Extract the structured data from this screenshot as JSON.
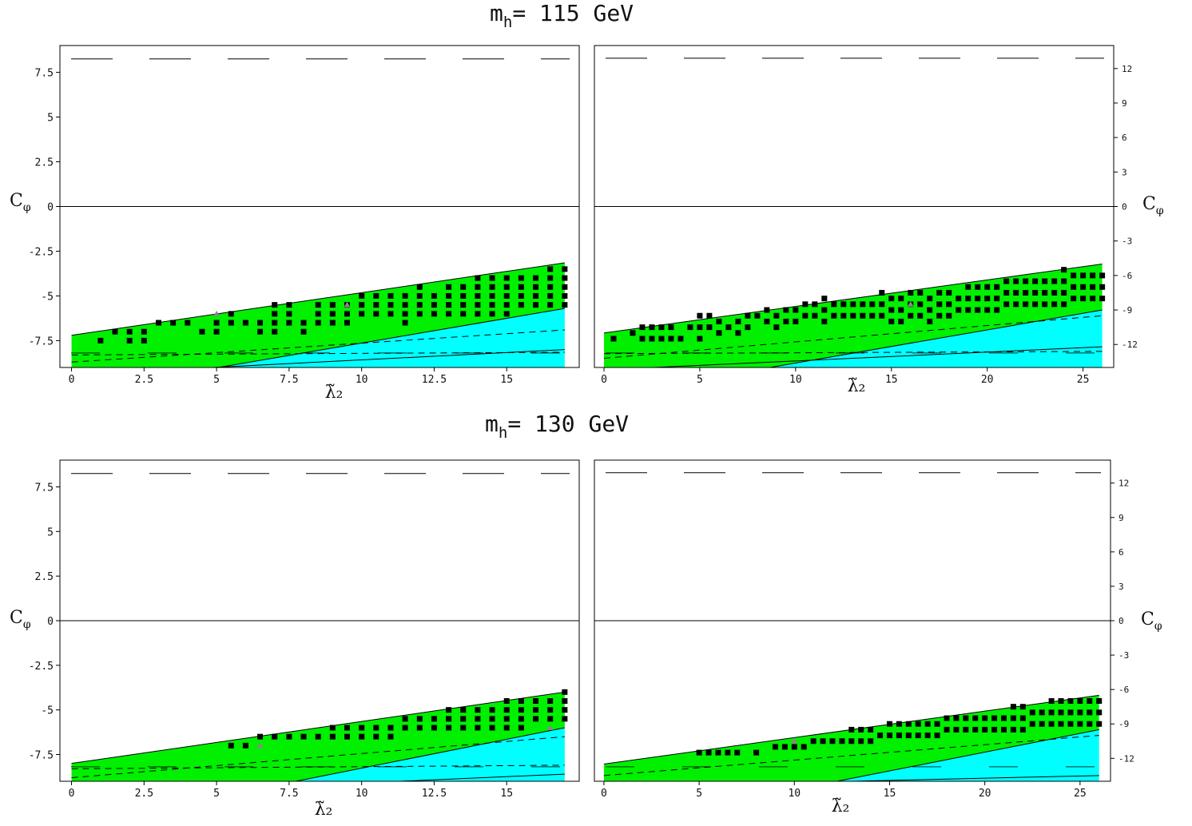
{
  "titles": [
    {
      "prefix": "m",
      "sub": "h",
      "text": "= 115 GeV"
    },
    {
      "prefix": "m",
      "sub": "h",
      "text": "= 130 GeV"
    }
  ],
  "colors": {
    "green": "#00f000",
    "cyan": "#00ffff",
    "marker": "#000000",
    "triangle": "#888888",
    "frame": "#000000"
  },
  "chart_data": [
    {
      "type": "scatter",
      "title": "m_h = 115 GeV",
      "xlabel": "λ̃₂",
      "ylabel": "C_φ",
      "xlim": [
        -0.4,
        17.5
      ],
      "ylim": [
        -9,
        9
      ],
      "xticks": [
        0,
        2.5,
        5,
        7.5,
        10,
        12.5,
        15
      ],
      "xtick_labels": [
        "0",
        "2.5",
        "5",
        "7.5",
        "10",
        "12.5",
        "15"
      ],
      "yticks": [
        7.5,
        5,
        2.5,
        0,
        -2.5,
        -5,
        -7.5
      ],
      "ytick_labels": [
        "7.5",
        "5",
        "2.5",
        "0",
        "-2.5",
        "-5",
        "-7.5"
      ],
      "ytick_side": "left",
      "region_x_max": 17,
      "green_upper": [
        [
          0,
          -7.2
        ],
        [
          17,
          -3.15
        ]
      ],
      "green_lower": [
        [
          0,
          -10.4
        ],
        [
          17,
          -5.7
        ]
      ],
      "dashed_lines": [
        [
          [
            0,
            -8.7
          ],
          [
            17,
            -6.9
          ]
        ],
        [
          [
            0,
            -8.3
          ],
          [
            17,
            -8.15
          ]
        ]
      ],
      "solid_lines": [
        [
          [
            0,
            -9.4
          ],
          [
            17,
            -8.0
          ]
        ]
      ],
      "top_dashed": 8.25,
      "point_columns": [
        [
          1.0,
          -7.5,
          -7.5
        ],
        [
          1.5,
          -7.0,
          -7.0
        ],
        [
          2.0,
          -7.5,
          -7.0
        ],
        [
          2.5,
          -7.5,
          -7.0
        ],
        [
          3.0,
          -6.5,
          -6.5
        ],
        [
          3.5,
          -6.5,
          -6.5
        ],
        [
          4.0,
          -6.5,
          -6.5
        ],
        [
          4.5,
          -7.0,
          -7.0
        ],
        [
          5.0,
          -7.0,
          -6.5
        ],
        [
          5.5,
          -6.5,
          -6.0
        ],
        [
          6.0,
          -6.5,
          -6.5
        ],
        [
          6.5,
          -7.0,
          -6.5
        ],
        [
          7.0,
          -7.0,
          -5.5
        ],
        [
          7.5,
          -6.5,
          -5.5
        ],
        [
          8.0,
          -7.0,
          -6.5
        ],
        [
          8.5,
          -6.5,
          -5.5
        ],
        [
          9.0,
          -6.5,
          -5.5
        ],
        [
          9.5,
          -6.5,
          -5.5
        ],
        [
          10.0,
          -6.0,
          -5.0
        ],
        [
          10.5,
          -6.0,
          -5.0
        ],
        [
          11.0,
          -6.0,
          -5.0
        ],
        [
          11.5,
          -6.5,
          -5.0
        ],
        [
          12.0,
          -6.0,
          -4.5
        ],
        [
          12.5,
          -6.0,
          -5.0
        ],
        [
          13.0,
          -6.0,
          -4.5
        ],
        [
          13.5,
          -6.0,
          -4.5
        ],
        [
          14.0,
          -6.0,
          -4.0
        ],
        [
          14.5,
          -6.0,
          -4.0
        ],
        [
          15.0,
          -6.0,
          -4.0
        ],
        [
          15.5,
          -5.5,
          -4.0
        ],
        [
          16.0,
          -5.5,
          -4.0
        ],
        [
          16.5,
          -5.5,
          -3.5
        ],
        [
          17.0,
          -5.5,
          -3.5
        ]
      ],
      "triangles": [
        [
          5.0,
          -6.0
        ],
        [
          9.5,
          -5.5
        ]
      ]
    },
    {
      "type": "scatter",
      "title": "m_h = 115 GeV",
      "xlabel": "λ̃₂",
      "ylabel": "C_φ",
      "xlim": [
        -0.5,
        26.6
      ],
      "ylim": [
        -14,
        14
      ],
      "xticks": [
        0,
        5,
        10,
        15,
        20,
        25
      ],
      "xtick_labels": [
        "0",
        "5",
        "10",
        "15",
        "20",
        "25"
      ],
      "yticks": [
        12,
        9,
        6,
        3,
        0,
        -3,
        -6,
        -9,
        -12
      ],
      "ytick_labels": [
        "12",
        "9",
        "6",
        "3",
        "0",
        "-3",
        "-6",
        "-9",
        "-12"
      ],
      "ytick_side": "right",
      "region_x_max": 26,
      "green_upper": [
        [
          0,
          -11.0
        ],
        [
          26,
          -5.0
        ]
      ],
      "green_lower": [
        [
          0,
          -16.5
        ],
        [
          26,
          -9.0
        ]
      ],
      "dashed_lines": [
        [
          [
            0,
            -13.2
          ],
          [
            26,
            -9.5
          ]
        ],
        [
          [
            0,
            -12.8
          ],
          [
            26,
            -12.6
          ]
        ]
      ],
      "solid_lines": [
        [
          [
            0,
            -14.2
          ],
          [
            26,
            -12.2
          ]
        ]
      ],
      "top_dashed": 12.9,
      "point_columns": [
        [
          0.5,
          -11.5,
          -11.5
        ],
        [
          1.5,
          -11.0,
          -11.0
        ],
        [
          2.0,
          -11.5,
          -10.5
        ],
        [
          2.5,
          -11.5,
          -10.5
        ],
        [
          3.0,
          -11.5,
          -10.0
        ],
        [
          3.5,
          -11.5,
          -10.5
        ],
        [
          4.0,
          -11.5,
          -11.0
        ],
        [
          4.5,
          -10.5,
          -10.0
        ],
        [
          5.0,
          -11.5,
          -9.5
        ],
        [
          5.5,
          -10.5,
          -9.5
        ],
        [
          6.0,
          -11.0,
          -9.5
        ],
        [
          6.5,
          -10.5,
          -10.0
        ],
        [
          7.0,
          -11.0,
          -9.5
        ],
        [
          7.5,
          -10.5,
          -9.0
        ],
        [
          8.0,
          -9.5,
          -9.5
        ],
        [
          8.5,
          -10.0,
          -9.0
        ],
        [
          9.0,
          -10.5,
          -9.0
        ],
        [
          9.5,
          -10.0,
          -8.5
        ],
        [
          10.0,
          -10.0,
          -8.5
        ],
        [
          10.5,
          -9.5,
          -8.5
        ],
        [
          11.0,
          -9.5,
          -8.5
        ],
        [
          11.5,
          -10.0,
          -8.0
        ],
        [
          12.0,
          -9.5,
          -8.5
        ],
        [
          12.5,
          -9.5,
          -8.0
        ],
        [
          13.0,
          -9.5,
          -8.0
        ],
        [
          13.5,
          -9.5,
          -8.0
        ],
        [
          14.0,
          -9.5,
          -8.0
        ],
        [
          14.5,
          -9.5,
          -7.5
        ],
        [
          15.0,
          -10.0,
          -7.5
        ],
        [
          15.5,
          -10.0,
          -7.5
        ],
        [
          16.0,
          -9.5,
          -7.5
        ],
        [
          16.5,
          -9.5,
          -7.5
        ],
        [
          17.0,
          -10.0,
          -7.5
        ],
        [
          17.5,
          -9.5,
          -7.5
        ],
        [
          18.0,
          -9.5,
          -7.5
        ],
        [
          18.5,
          -9.0,
          -7.5
        ],
        [
          19.0,
          -9.0,
          -7.0
        ],
        [
          19.5,
          -9.0,
          -7.0
        ],
        [
          20.0,
          -9.0,
          -6.5
        ],
        [
          20.5,
          -9.0,
          -6.5
        ],
        [
          21.0,
          -8.5,
          -6.5
        ],
        [
          21.5,
          -8.5,
          -6.5
        ],
        [
          22.0,
          -8.5,
          -6.0
        ],
        [
          22.5,
          -8.5,
          -6.0
        ],
        [
          23.0,
          -8.5,
          -6.0
        ],
        [
          23.5,
          -8.5,
          -6.0
        ],
        [
          24.0,
          -8.5,
          -5.5
        ],
        [
          24.5,
          -8.0,
          -5.5
        ],
        [
          25.0,
          -8.0,
          -5.5
        ],
        [
          25.5,
          -8.0,
          -5.5
        ],
        [
          26.0,
          -8.0,
          -5.5
        ]
      ],
      "triangles": [
        [
          16.0,
          -8.5
        ]
      ]
    },
    {
      "type": "scatter",
      "title": "m_h = 130 GeV",
      "xlabel": "λ̃₂",
      "ylabel": "C_φ",
      "xlim": [
        -0.4,
        17.5
      ],
      "ylim": [
        -9,
        9
      ],
      "xticks": [
        0,
        2.5,
        5,
        7.5,
        10,
        12.5,
        15
      ],
      "xtick_labels": [
        "0",
        "2.5",
        "5",
        "7.5",
        "10",
        "12.5",
        "15"
      ],
      "yticks": [
        7.5,
        5,
        2.5,
        0,
        -2.5,
        -5,
        -7.5
      ],
      "ytick_labels": [
        "7.5",
        "5",
        "2.5",
        "0",
        "-2.5",
        "-5",
        "-7.5"
      ],
      "ytick_side": "left",
      "region_x_max": 17,
      "green_upper": [
        [
          0,
          -8.0
        ],
        [
          17,
          -4.0
        ]
      ],
      "green_lower": [
        [
          0,
          -11.5
        ],
        [
          17,
          -6.0
        ]
      ],
      "dashed_lines": [
        [
          [
            0,
            -8.8
          ],
          [
            17,
            -6.5
          ]
        ],
        [
          [
            0,
            -8.3
          ],
          [
            17,
            -8.1
          ]
        ]
      ],
      "solid_lines": [
        [
          [
            0,
            -9.8
          ],
          [
            17,
            -8.6
          ]
        ]
      ],
      "top_dashed": 8.25,
      "point_columns": [
        [
          5.5,
          -7.0,
          -7.0
        ],
        [
          6.0,
          -7.0,
          -7.0
        ],
        [
          6.5,
          -6.5,
          -6.5
        ],
        [
          7.0,
          -6.5,
          -6.5
        ],
        [
          7.5,
          -6.5,
          -6.5
        ],
        [
          8.0,
          -6.5,
          -6.5
        ],
        [
          8.5,
          -6.5,
          -6.5
        ],
        [
          9.0,
          -6.5,
          -6.0
        ],
        [
          9.5,
          -6.5,
          -6.0
        ],
        [
          10.0,
          -6.5,
          -6.0
        ],
        [
          10.5,
          -6.5,
          -6.0
        ],
        [
          11.0,
          -6.5,
          -6.0
        ],
        [
          11.5,
          -6.0,
          -5.5
        ],
        [
          12.0,
          -6.0,
          -5.5
        ],
        [
          12.5,
          -6.0,
          -5.5
        ],
        [
          13.0,
          -6.0,
          -5.0
        ],
        [
          13.5,
          -6.0,
          -5.0
        ],
        [
          14.0,
          -6.0,
          -5.0
        ],
        [
          14.5,
          -6.0,
          -5.0
        ],
        [
          15.0,
          -6.0,
          -4.5
        ],
        [
          15.5,
          -6.0,
          -4.5
        ],
        [
          16.0,
          -5.5,
          -4.5
        ],
        [
          16.5,
          -5.5,
          -4.5
        ],
        [
          17.0,
          -5.5,
          -4.0
        ]
      ],
      "triangles": [
        [
          6.5,
          -7.0
        ],
        [
          16.5,
          -6.0
        ]
      ]
    },
    {
      "type": "scatter",
      "title": "m_h = 130 GeV",
      "xlabel": "λ̃₂",
      "ylabel": "C_φ",
      "xlim": [
        -0.5,
        26.6
      ],
      "ylim": [
        -14,
        14
      ],
      "xticks": [
        0,
        5,
        10,
        15,
        20,
        25
      ],
      "xtick_labels": [
        "0",
        "5",
        "10",
        "15",
        "20",
        "25"
      ],
      "yticks": [
        12,
        9,
        6,
        3,
        0,
        -3,
        -6,
        -9,
        -12
      ],
      "ytick_labels": [
        "12",
        "9",
        "6",
        "3",
        "0",
        "-3",
        "-6",
        "-9",
        "-12"
      ],
      "ytick_side": "right",
      "region_x_max": 26,
      "green_upper": [
        [
          0,
          -12.5
        ],
        [
          26,
          -6.5
        ]
      ],
      "green_lower": [
        [
          0,
          -18.0
        ],
        [
          26,
          -9.5
        ]
      ],
      "dashed_lines": [
        [
          [
            0,
            -13.5
          ],
          [
            26,
            -10.0
          ]
        ]
      ],
      "solid_lines": [
        [
          [
            0,
            -14.5
          ],
          [
            26,
            -13.5
          ]
        ]
      ],
      "top_dashed": 12.9,
      "point_columns": [
        [
          5.0,
          -11.5,
          -11.5
        ],
        [
          5.5,
          -11.5,
          -11.5
        ],
        [
          6.0,
          -11.5,
          -11.5
        ],
        [
          6.5,
          -11.5,
          -11.0
        ],
        [
          7.0,
          -11.5,
          -11.5
        ],
        [
          8.0,
          -11.5,
          -11.0
        ],
        [
          9.0,
          -11.0,
          -10.5
        ],
        [
          9.5,
          -11.0,
          -10.5
        ],
        [
          10.0,
          -11.0,
          -10.5
        ],
        [
          10.5,
          -11.0,
          -10.5
        ],
        [
          11.0,
          -10.5,
          -10.0
        ],
        [
          11.5,
          -10.5,
          -10.0
        ],
        [
          12.0,
          -10.5,
          -10.0
        ],
        [
          12.5,
          -10.5,
          -10.0
        ],
        [
          13.0,
          -10.5,
          -9.5
        ],
        [
          13.5,
          -10.5,
          -9.5
        ],
        [
          14.0,
          -10.5,
          -9.5
        ],
        [
          14.5,
          -10.0,
          -9.5
        ],
        [
          15.0,
          -10.0,
          -9.0
        ],
        [
          15.5,
          -10.0,
          -9.0
        ],
        [
          16.0,
          -10.0,
          -9.0
        ],
        [
          16.5,
          -10.0,
          -9.0
        ],
        [
          17.0,
          -10.0,
          -8.5
        ],
        [
          17.5,
          -10.0,
          -8.5
        ],
        [
          18.0,
          -9.5,
          -8.5
        ],
        [
          18.5,
          -9.5,
          -8.5
        ],
        [
          19.0,
          -9.5,
          -8.5
        ],
        [
          19.5,
          -9.5,
          -8.0
        ],
        [
          20.0,
          -9.5,
          -8.0
        ],
        [
          20.5,
          -9.5,
          -8.0
        ],
        [
          21.0,
          -9.5,
          -8.0
        ],
        [
          21.5,
          -9.5,
          -7.5
        ],
        [
          22.0,
          -9.5,
          -7.5
        ],
        [
          22.5,
          -9.0,
          -7.5
        ],
        [
          23.0,
          -9.0,
          -7.5
        ],
        [
          23.5,
          -9.0,
          -7.0
        ],
        [
          24.0,
          -9.0,
          -7.0
        ],
        [
          24.5,
          -9.0,
          -7.0
        ],
        [
          25.0,
          -9.0,
          -7.0
        ],
        [
          25.5,
          -9.0,
          -7.0
        ],
        [
          26.0,
          -9.0,
          -6.5
        ]
      ],
      "triangles": [
        [
          10.0,
          -10.5
        ]
      ]
    }
  ]
}
